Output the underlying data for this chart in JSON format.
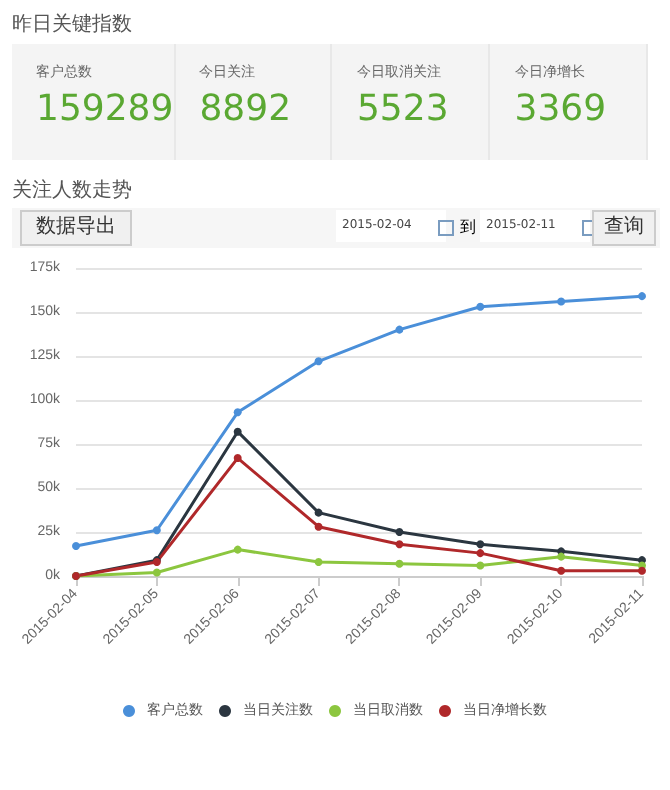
{
  "chart_data": [
    {
      "type": "other",
      "title": "昨日关键指数",
      "categories": [
        "客户总数",
        "今日关注",
        "今日取消关注",
        "今日净增长"
      ],
      "values": [
        159289,
        8892,
        5523,
        3369
      ],
      "data_labels": true
    },
    {
      "type": "line",
      "title": "关注人数走势",
      "annotations": [
        "数据导出",
        "2015-02-04",
        "到",
        "2015-02-11",
        "查询"
      ],
      "categories": [
        "2015-02-04",
        "2015-02-05",
        "2015-02-06",
        "2015-02-07",
        "2015-02-08",
        "2015-02-09",
        "2015-02-10",
        "2015-02-11"
      ],
      "series": [
        {
          "name": "客户总数",
          "color": "#4a8fd9",
          "values": [
            17000,
            26000,
            93000,
            122000,
            140000,
            153000,
            156000,
            159000
          ]
        },
        {
          "name": "当日关注数",
          "color": "#2b3640",
          "values": [
            0,
            9000,
            82000,
            36000,
            25000,
            18000,
            14000,
            9000
          ]
        },
        {
          "name": "当日取消数",
          "color": "#8cc63f",
          "values": [
            0,
            2000,
            15000,
            8000,
            7000,
            6000,
            11000,
            6000
          ]
        },
        {
          "name": "当日净增长数",
          "color": "#b0282a",
          "values": [
            0,
            8000,
            67000,
            28000,
            18000,
            13000,
            3000,
            3000
          ]
        }
      ],
      "ylim": [
        0,
        175000
      ],
      "yticks": [
        {
          "value": 0,
          "label": "0k"
        },
        {
          "value": 25000,
          "label": "25k"
        },
        {
          "value": 50000,
          "label": "50k"
        },
        {
          "value": 75000,
          "label": "75k"
        },
        {
          "value": 100000,
          "label": "100k"
        },
        {
          "value": 125000,
          "label": "125k"
        },
        {
          "value": 150000,
          "label": "150k"
        },
        {
          "value": 175000,
          "label": "175k"
        }
      ],
      "grid": "y",
      "legend": "bottom",
      "marker": "circle",
      "line_style": "solid"
    }
  ]
}
